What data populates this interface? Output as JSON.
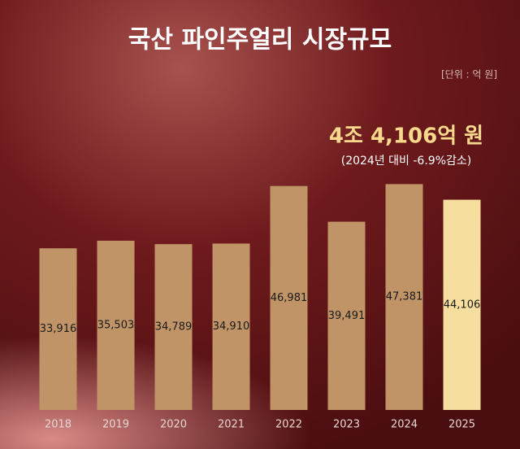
{
  "chart_data": {
    "type": "bar",
    "title": "국산  파인주얼리 시장규모",
    "unit_note": "[단위 : 억 원]",
    "headline": "4조 4,106억 원",
    "subheadline": "(2024년 대비 -6.9%감소)",
    "categories": [
      "2018",
      "2019",
      "2020",
      "2021",
      "2022",
      "2023",
      "2024",
      "2025"
    ],
    "values": [
      33916,
      35503,
      34789,
      34910,
      46981,
      39491,
      47381,
      44106
    ],
    "value_labels": [
      "33,916",
      "35,503",
      "34,789",
      "34,910",
      "46,981",
      "39,491",
      "47,381",
      "44,106"
    ],
    "color": "#c09467",
    "highlight_color": "#f6df9e",
    "ylim": [
      0,
      50000
    ]
  }
}
